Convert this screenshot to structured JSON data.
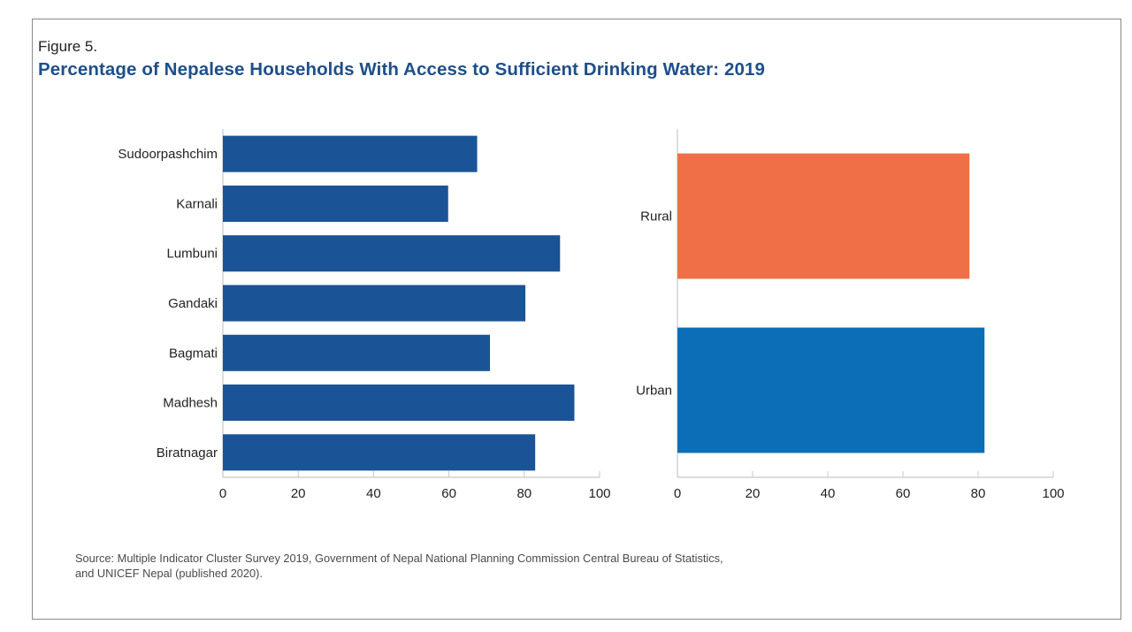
{
  "figure_label": "Figure 5.",
  "title": "Percentage of Nepalese Households With Access to Sufficient Drinking Water: 2019",
  "source_line1": "Source: Multiple Indicator Cluster Survey 2019, Government of Nepal National Planning Commission Central Bureau of Statistics,",
  "source_line2": "and UNICEF Nepal (published 2020).",
  "colors": {
    "province_bar": "#1a5496",
    "rural_bar": "#ef7046",
    "urban_bar": "#0d6eb8",
    "title": "#1e4f8a",
    "axis": "#c8c8c8"
  },
  "chart_data": [
    {
      "type": "bar",
      "orientation": "horizontal",
      "title": "",
      "xlabel": "",
      "ylabel": "",
      "categories": [
        "Sudoorpashchim",
        "Karnali",
        "Lumbuni",
        "Gandaki",
        "Bagmati",
        "Madhesh",
        "Biratnagar"
      ],
      "values": [
        67.5,
        59.8,
        89.5,
        80.3,
        70.9,
        93.3,
        82.9
      ],
      "xlim": [
        0,
        100
      ],
      "xticks": [
        "0",
        "20",
        "40",
        "60",
        "80",
        "100"
      ],
      "grid": false,
      "legend": "none"
    },
    {
      "type": "bar",
      "orientation": "horizontal",
      "title": "",
      "xlabel": "",
      "ylabel": "",
      "categories": [
        "Rural",
        "Urban"
      ],
      "values": [
        77.7,
        81.7
      ],
      "xlim": [
        0,
        100
      ],
      "xticks": [
        "0",
        "20",
        "40",
        "60",
        "80",
        "100"
      ],
      "grid": false,
      "legend": "none"
    }
  ]
}
